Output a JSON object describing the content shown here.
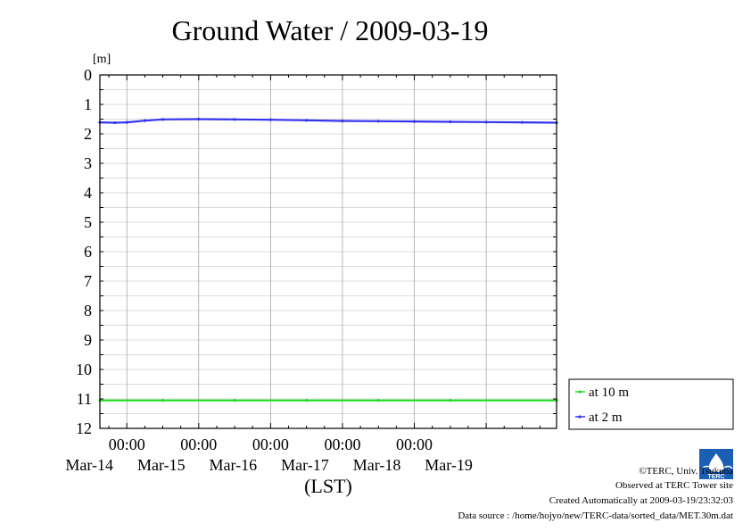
{
  "chart_data": {
    "type": "line",
    "title": "Ground Water / 2009-03-19",
    "ylabel_unit": "[m]",
    "xlabel": "(LST)",
    "y_inverted": true,
    "ylim": [
      0,
      12
    ],
    "yticks": [
      "0",
      "1",
      "2",
      "3",
      "4",
      "5",
      "6",
      "7",
      "8",
      "9",
      "10",
      "11",
      "12"
    ],
    "xlim": [
      "2009-03-13T15:00",
      "2009-03-19T23:30"
    ],
    "x_time_labels": [
      "00:00",
      "00:00",
      "00:00",
      "00:00",
      "00:00"
    ],
    "x_date_labels": [
      "Mar-14",
      "Mar-15",
      "Mar-16",
      "Mar-17",
      "Mar-18",
      "Mar-19"
    ],
    "grid": true,
    "legend_position": "right",
    "series": [
      {
        "name": "at 10 m",
        "color": "#22dd22",
        "x": [
          "2009-03-13T15:00",
          "2009-03-14T12:00",
          "2009-03-15T12:00",
          "2009-03-16T12:00",
          "2009-03-17T12:00",
          "2009-03-18T12:00",
          "2009-03-19T23:30"
        ],
        "y": [
          11.05,
          11.05,
          11.05,
          11.05,
          11.05,
          11.05,
          11.05
        ]
      },
      {
        "name": "at 2 m",
        "color": "#3333ee",
        "x": [
          "2009-03-13T15:00",
          "2009-03-13T20:00",
          "2009-03-14T00:00",
          "2009-03-14T06:00",
          "2009-03-14T12:00",
          "2009-03-15T00:00",
          "2009-03-15T12:00",
          "2009-03-16T00:00",
          "2009-03-16T12:00",
          "2009-03-17T00:00",
          "2009-03-17T12:00",
          "2009-03-18T00:00",
          "2009-03-18T12:00",
          "2009-03-19T00:00",
          "2009-03-19T12:00",
          "2009-03-19T23:30"
        ],
        "y": [
          1.61,
          1.62,
          1.61,
          1.55,
          1.51,
          1.5,
          1.51,
          1.52,
          1.54,
          1.56,
          1.57,
          1.58,
          1.59,
          1.6,
          1.61,
          1.62
        ]
      }
    ]
  },
  "credits": {
    "copyright": "©TERC, Univ. Tsukuba",
    "observed": "Observed at TERC Tower site",
    "created": "Created Automatically at 2009-03-19/23:32:03",
    "source": "Data source : /home/hojyo/new/TERC-data/sorted_data/MET.30m.dat"
  },
  "logo": {
    "text": "TERC",
    "color": "#1a5fb4"
  }
}
